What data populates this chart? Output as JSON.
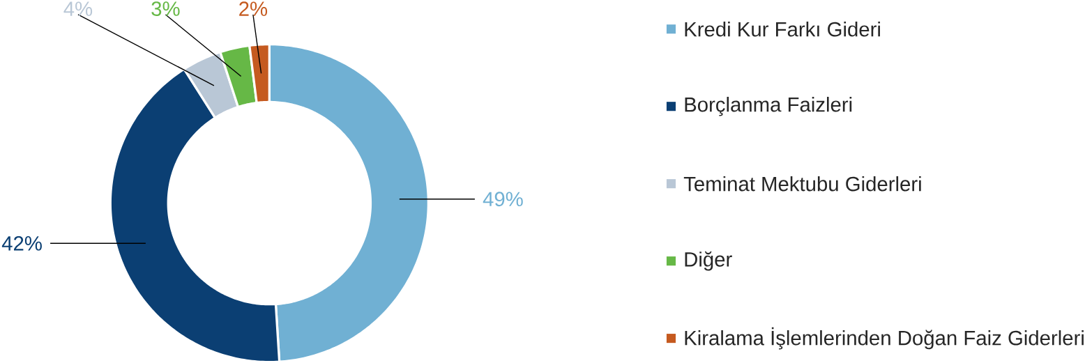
{
  "chart_data": {
    "type": "donut",
    "categories": [
      "Kredi Kur Farkı Gideri",
      "Borçlanma Faizleri",
      "Teminat Mektubu Giderleri",
      "Diğer",
      "Kiralama İşlemlerinden Doğan Faiz Giderleri"
    ],
    "values": [
      49,
      42,
      4,
      3,
      2
    ],
    "colors": [
      "#70b0d3",
      "#0b3f73",
      "#b9c7d6",
      "#66b846",
      "#c55a1f"
    ],
    "value_labels": [
      "49%",
      "42%",
      "4%",
      "3%",
      "2%"
    ],
    "legend": "right"
  }
}
